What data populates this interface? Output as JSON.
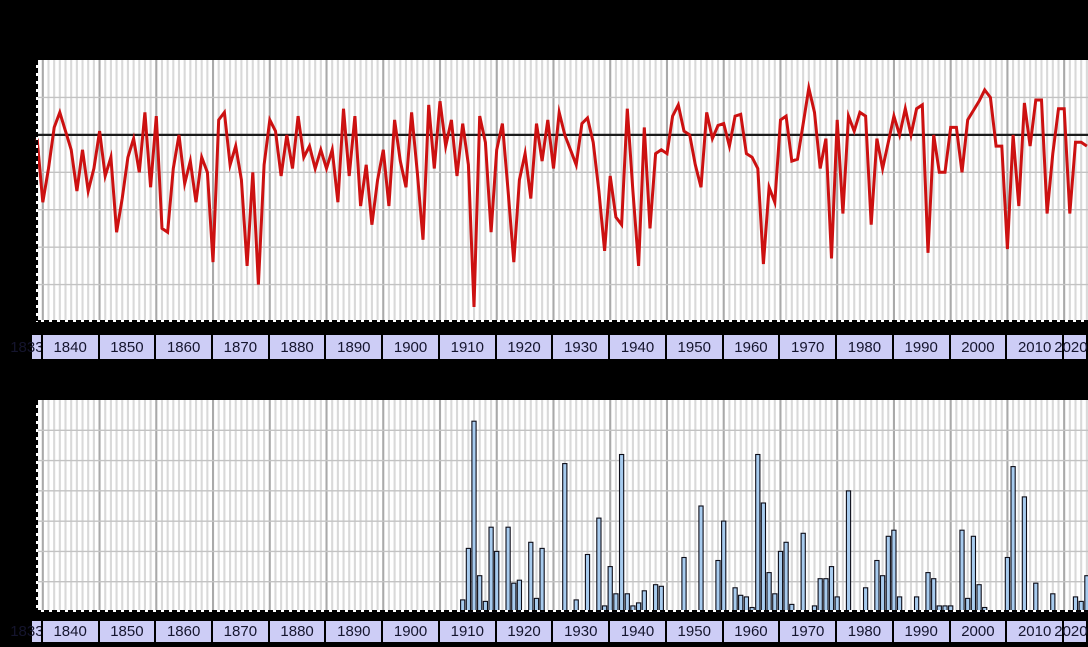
{
  "window": {
    "background_color": "#000000",
    "visible_text_note": "no titles or y-axis labels visible; only decade boxes on the x-axes"
  },
  "axis": {
    "decades": [
      "1833",
      "1840",
      "1850",
      "1860",
      "1870",
      "1880",
      "1890",
      "1900",
      "1910",
      "1920",
      "1930",
      "1940",
      "1950",
      "1960",
      "1970",
      "1980",
      "1990",
      "2000",
      "2010",
      "2020"
    ],
    "band_fill": "#cdcdf6",
    "band_border": "#000000",
    "band_text_color": "#15152e"
  },
  "colors": {
    "plot_background": "#ffffff",
    "year_gridline": "#d9d9d9",
    "decade_gridline": "#a9a9a9",
    "horizontal_gridline": "#c3c3c3",
    "mean_line": "#1c1c1c",
    "line_series": "#cc1111",
    "bar_fill": "#a7cbee",
    "bar_stroke": "#0d0d18",
    "axis_dash": "#000000"
  },
  "chart_data": [
    {
      "type": "line",
      "title": "",
      "xlabel": "",
      "ylabel": "",
      "x_range": [
        1833.8,
        2019.2
      ],
      "x_start_year": 1834,
      "grid": true,
      "legend": "none",
      "y_axis": {
        "unit": "gridline divisions (no numeric labels visible)",
        "min": -5,
        "max": 2,
        "baseline": 0,
        "baseline_style": "solid black mean line"
      },
      "values": [
        -0.1,
        -1.8,
        -0.9,
        0.2,
        0.6,
        0.1,
        -0.4,
        -1.5,
        -0.4,
        -1.5,
        -0.9,
        0.1,
        -1.1,
        -0.6,
        -2.6,
        -1.7,
        -0.6,
        -0.1,
        -1.0,
        0.6,
        -1.4,
        0.5,
        -2.5,
        -2.6,
        -0.9,
        0.0,
        -1.3,
        -0.7,
        -1.8,
        -0.6,
        -1.0,
        -3.4,
        0.4,
        0.6,
        -0.8,
        -0.3,
        -1.2,
        -3.5,
        -1.0,
        -4.0,
        -0.8,
        0.4,
        0.1,
        -1.1,
        0.0,
        -0.9,
        0.5,
        -0.6,
        -0.3,
        -0.9,
        -0.4,
        -0.9,
        -0.4,
        -1.8,
        0.7,
        -1.1,
        0.5,
        -1.9,
        -0.8,
        -2.4,
        -1.2,
        -0.4,
        -1.9,
        0.4,
        -0.7,
        -1.4,
        0.6,
        -1.0,
        -2.8,
        0.8,
        -0.9,
        0.9,
        -0.3,
        0.4,
        -1.1,
        0.3,
        -0.8,
        -4.6,
        0.5,
        -0.2,
        -2.6,
        -0.4,
        0.3,
        -1.5,
        -3.4,
        -1.2,
        -0.5,
        -1.7,
        0.3,
        -0.7,
        0.4,
        -0.9,
        0.6,
        0.0,
        -0.4,
        -0.8,
        0.3,
        0.45,
        -0.2,
        -1.5,
        -3.1,
        -1.1,
        -2.2,
        -2.4,
        0.7,
        -1.5,
        -3.5,
        0.2,
        -2.5,
        -0.5,
        -0.4,
        -0.5,
        0.5,
        0.8,
        0.1,
        0.0,
        -0.8,
        -1.4,
        0.6,
        -0.1,
        0.25,
        0.3,
        -0.3,
        0.5,
        0.55,
        -0.5,
        -0.6,
        -0.9,
        -3.45,
        -1.4,
        -1.8,
        0.4,
        0.5,
        -0.7,
        -0.65,
        0.3,
        1.25,
        0.6,
        -0.9,
        -0.1,
        -3.3,
        0.4,
        -2.1,
        0.5,
        0.1,
        0.6,
        0.5,
        -2.4,
        -0.1,
        -0.9,
        -0.2,
        0.5,
        0.0,
        0.7,
        0.0,
        0.7,
        0.8,
        -3.15,
        0.0,
        -1.0,
        -1.0,
        0.2,
        0.2,
        -1.0,
        0.4,
        0.65,
        0.9,
        1.2,
        1.0,
        -0.3,
        -0.3,
        -3.05,
        0.0,
        -1.9,
        0.85,
        -0.3,
        0.93,
        0.93,
        -2.1,
        -0.5,
        0.7,
        0.7,
        -2.1,
        -0.2,
        -0.2,
        -0.3
      ]
    },
    {
      "type": "bar",
      "title": "",
      "xlabel": "",
      "ylabel": "",
      "x_range": [
        1833.8,
        2019.2
      ],
      "grid": true,
      "legend": "none",
      "y_axis": {
        "unit": "gridline divisions (no numeric labels visible)",
        "min": 0,
        "max": 7
      },
      "points": [
        [
          1909,
          0.4
        ],
        [
          1910,
          2.1
        ],
        [
          1911,
          6.3
        ],
        [
          1912,
          1.2
        ],
        [
          1913,
          0.35
        ],
        [
          1914,
          2.8
        ],
        [
          1915,
          2.0
        ],
        [
          1917,
          2.8
        ],
        [
          1918,
          0.95
        ],
        [
          1919,
          1.05
        ],
        [
          1921,
          2.3
        ],
        [
          1922,
          0.45
        ],
        [
          1923,
          2.1
        ],
        [
          1927,
          4.9
        ],
        [
          1929,
          0.4
        ],
        [
          1931,
          1.9
        ],
        [
          1933,
          3.1
        ],
        [
          1934,
          0.2
        ],
        [
          1935,
          1.5
        ],
        [
          1936,
          0.6
        ],
        [
          1937,
          5.2
        ],
        [
          1938,
          0.6
        ],
        [
          1939,
          0.2
        ],
        [
          1940,
          0.3
        ],
        [
          1941,
          0.7
        ],
        [
          1943,
          0.9
        ],
        [
          1944,
          0.85
        ],
        [
          1948,
          1.8
        ],
        [
          1951,
          3.5
        ],
        [
          1954,
          1.7
        ],
        [
          1955,
          3.0
        ],
        [
          1957,
          0.8
        ],
        [
          1958,
          0.55
        ],
        [
          1959,
          0.5
        ],
        [
          1960,
          0.15
        ],
        [
          1961,
          5.2
        ],
        [
          1962,
          3.6
        ],
        [
          1963,
          1.3
        ],
        [
          1964,
          0.6
        ],
        [
          1965,
          2.0
        ],
        [
          1966,
          2.3
        ],
        [
          1967,
          0.25
        ],
        [
          1969,
          2.6
        ],
        [
          1971,
          0.2
        ],
        [
          1972,
          1.1
        ],
        [
          1973,
          1.1
        ],
        [
          1974,
          1.5
        ],
        [
          1975,
          0.5
        ],
        [
          1977,
          4.0
        ],
        [
          1980,
          0.8
        ],
        [
          1982,
          1.7
        ],
        [
          1983,
          1.2
        ],
        [
          1984,
          2.5
        ],
        [
          1985,
          2.7
        ],
        [
          1986,
          0.5
        ],
        [
          1989,
          0.5
        ],
        [
          1991,
          1.3
        ],
        [
          1992,
          1.1
        ],
        [
          1993,
          0.2
        ],
        [
          1994,
          0.2
        ],
        [
          1995,
          0.2
        ],
        [
          1997,
          2.7
        ],
        [
          1998,
          0.45
        ],
        [
          1999,
          2.5
        ],
        [
          2000,
          0.9
        ],
        [
          2001,
          0.15
        ],
        [
          2005,
          1.8
        ],
        [
          2006,
          4.8
        ],
        [
          2008,
          3.8
        ],
        [
          2010,
          0.95
        ],
        [
          2013,
          0.6
        ],
        [
          2017,
          0.5
        ],
        [
          2018,
          0.35
        ],
        [
          2019,
          1.2
        ]
      ]
    }
  ]
}
